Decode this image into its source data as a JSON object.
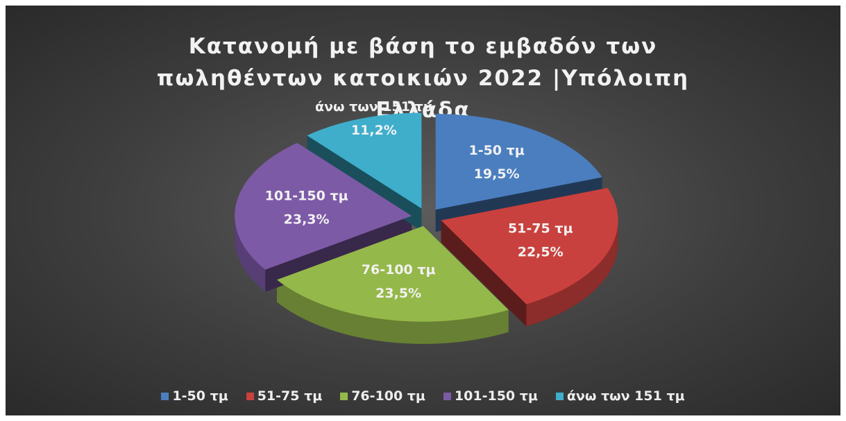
{
  "chart_data": {
    "type": "pie3d",
    "title": "Κατανομή με βάση το εμβαδόν των πωληθέντων κατοικιών 2022 |Υπόλοιπη Ελλάδα",
    "categories": [
      "1-50 τμ",
      "51-75 τμ",
      "76-100 τμ",
      "101-150 τμ",
      "άνω των 151 τμ"
    ],
    "values": [
      19.5,
      22.5,
      23.5,
      23.3,
      11.2
    ],
    "value_labels": [
      "19,5%",
      "22,5%",
      "23,5%",
      "23,3%",
      "11,2%"
    ],
    "colors": [
      "#4a7ebf",
      "#c9413e",
      "#95b84a",
      "#7d5aa6",
      "#3eaecb"
    ],
    "legend": "bottom"
  }
}
